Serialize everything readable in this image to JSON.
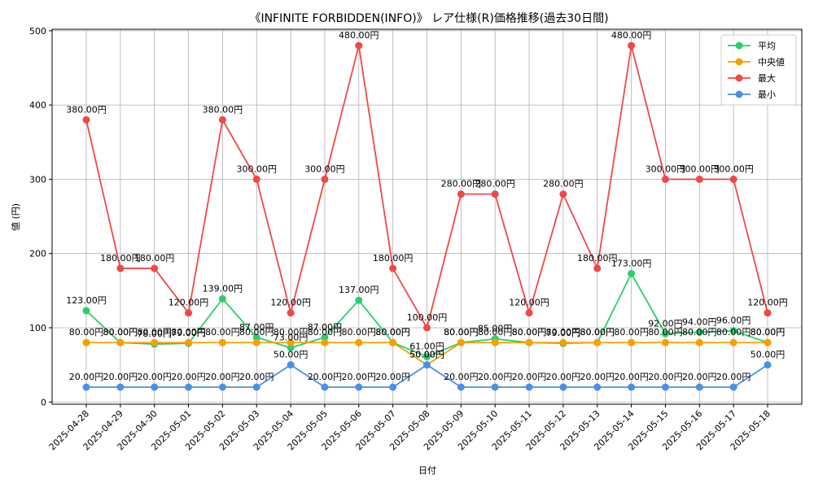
{
  "chart_data": {
    "type": "line",
    "title": "《INFINITE FORBIDDEN(INFO)》 レア仕様(R)価格推移(過去30日間)",
    "xlabel": "日付",
    "ylabel": "値 (円)",
    "ylim": [
      -3,
      502
    ],
    "yticks": [
      0,
      100,
      200,
      300,
      400,
      500
    ],
    "grid": true,
    "legend_position": "top-right",
    "value_suffix": "円",
    "categories": [
      "2025-04-28",
      "2025-04-29",
      "2025-04-30",
      "2025-05-01",
      "2025-05-02",
      "2025-05-03",
      "2025-05-04",
      "2025-05-05",
      "2025-05-06",
      "2025-05-07",
      "2025-05-08",
      "2025-05-09",
      "2025-05-10",
      "2025-05-11",
      "2025-05-12",
      "2025-05-13",
      "2025-05-14",
      "2025-05-15",
      "2025-05-16",
      "2025-05-17",
      "2025-05-18"
    ],
    "series": [
      {
        "name": "平均",
        "color": "#2ecc71",
        "values": [
          123,
          80,
          78,
          79,
          139,
          87,
          73,
          87,
          137,
          80,
          61,
          80,
          85,
          80,
          79,
          80,
          173,
          92,
          94,
          96,
          80
        ]
      },
      {
        "name": "中央値",
        "color": "#f5a000",
        "values": [
          80,
          80,
          80,
          80,
          80,
          80,
          80,
          80,
          80,
          80,
          50,
          80,
          80,
          80,
          80,
          80,
          80,
          80,
          80,
          80,
          80
        ]
      },
      {
        "name": "最大",
        "color": "#f04848",
        "values": [
          380,
          180,
          180,
          120,
          380,
          300,
          120,
          300,
          480,
          180,
          100,
          280,
          280,
          120,
          280,
          180,
          480,
          300,
          300,
          300,
          120
        ]
      },
      {
        "name": "最小",
        "color": "#4a90e8",
        "values": [
          20,
          20,
          20,
          20,
          20,
          20,
          50,
          20,
          20,
          20,
          50,
          20,
          20,
          20,
          20,
          20,
          20,
          20,
          20,
          20,
          50
        ]
      }
    ]
  }
}
